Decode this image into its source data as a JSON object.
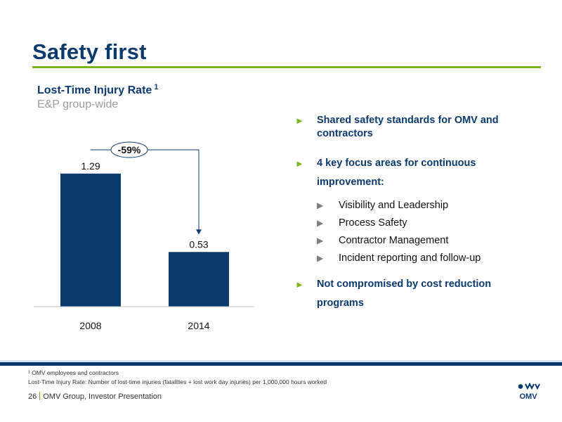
{
  "title": "Safety first",
  "chart_title": "Lost-Time Injury Rate",
  "chart_title_sup": "1",
  "chart_subtitle": "E&P group-wide",
  "chart_data": {
    "type": "bar",
    "categories": [
      "2008",
      "2014"
    ],
    "values": [
      1.29,
      0.53
    ],
    "value_labels": [
      "1.29",
      "0.53"
    ],
    "annotation": "-59%",
    "ylim": [
      0,
      1.5
    ],
    "grid": false,
    "bar_color": "#0b3a6e"
  },
  "bullets": [
    {
      "text": "Shared safety standards for OMV and contractors"
    },
    {
      "text": "4 key focus areas for continuous improvement:"
    },
    {
      "text": "Not compromised by cost reduction programs"
    }
  ],
  "sub_bullets": [
    "Visibility and Leadership",
    "Process Safety",
    "Contractor Management",
    "Incident reporting and follow-up"
  ],
  "bullet_marker": "►",
  "sub_bullet_marker": "▶",
  "footnote_line1": "¹ OMV employees and contractors",
  "footnote_line2": "Lost-Time Injury Rate: Number of lost-time injuries (fatalities + lost work day injuries) per 1,000,000 hours worked",
  "page_number": "26",
  "footer_text": "OMV Group, Investor Presentation",
  "logo_text": "OMV",
  "colors": {
    "navy": "#0b3a6e",
    "green": "#7ab51d"
  }
}
